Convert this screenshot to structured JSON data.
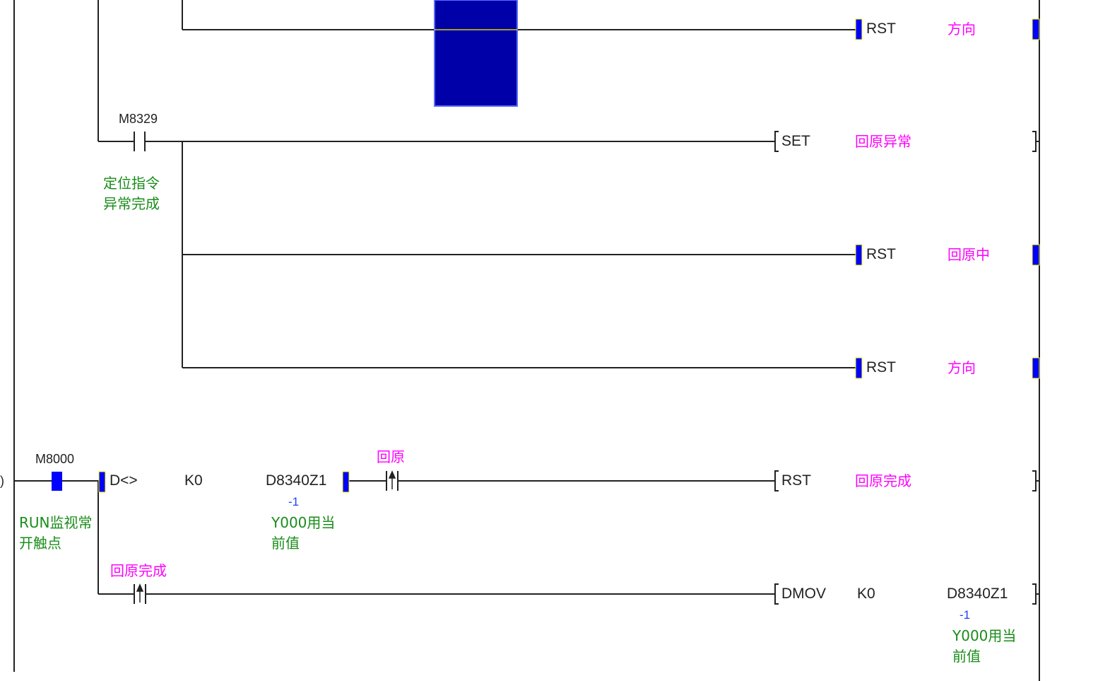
{
  "colors": {
    "rail": "#222222",
    "cursor": "#0000a8",
    "active": "#0000ff",
    "highlight": "#ffff00",
    "comment": "#1a8c1a",
    "label": "#ff00ff",
    "monitor": "#1f3fff"
  },
  "rungs": [
    {
      "id": "r1",
      "instr": "RST",
      "operand": "方向",
      "output_active": true
    },
    {
      "id": "r2",
      "contact": {
        "device": "M8329",
        "comment": [
          "定位指令",
          "异常完成"
        ]
      },
      "instr": "SET",
      "operand": "回原异常"
    },
    {
      "id": "r3",
      "instr": "RST",
      "operand": "回原中",
      "output_active": true
    },
    {
      "id": "r4",
      "instr": "RST",
      "operand": "方向",
      "output_active": true
    },
    {
      "id": "r5",
      "step_fragment": "l)",
      "contact": {
        "device": "M8000",
        "comment": [
          "RUN监视常",
          "开触点"
        ],
        "active": true
      },
      "compare": {
        "op": "D<>",
        "s1": "K0",
        "s2": "D8340Z1",
        "s2_value": "-1",
        "s2_comment": [
          "Y000用当",
          "前值"
        ]
      },
      "pulse_contact": {
        "label": "回原",
        "icon": "rising-edge-contact-icon"
      },
      "instr": "RST",
      "operand": "回原完成"
    },
    {
      "id": "r6",
      "pulse_contact": {
        "label": "回原完成",
        "icon": "rising-edge-contact-icon"
      },
      "instr": "DMOV",
      "s1": "K0",
      "s2": "D8340Z1",
      "s2_value": "-1",
      "s2_comment": [
        "Y000用当",
        "前值"
      ]
    }
  ]
}
